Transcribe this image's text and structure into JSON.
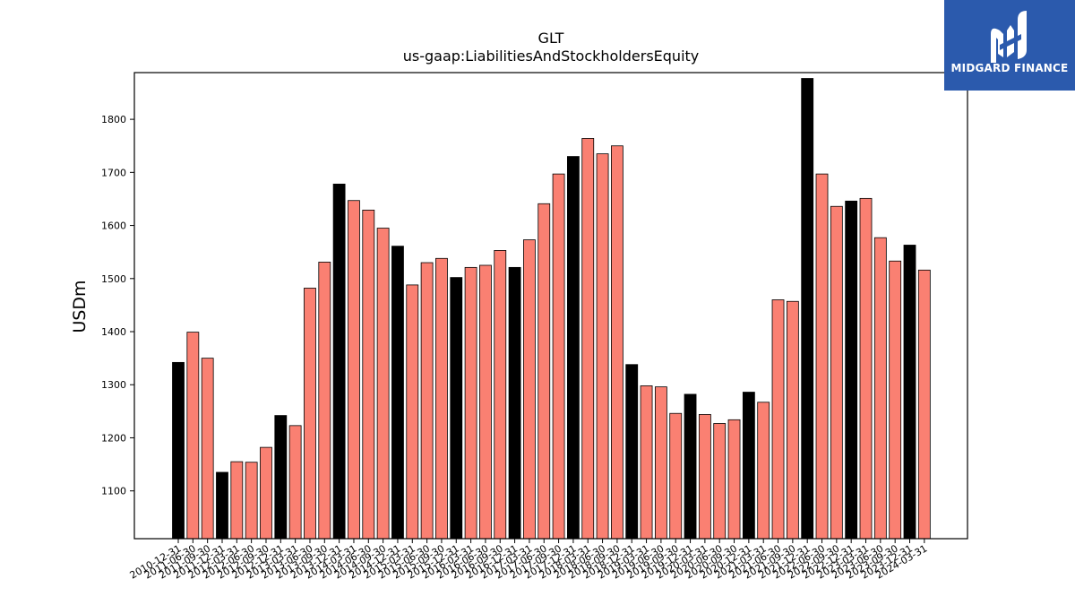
{
  "logo": {
    "text": "MIDGARD FINANCE",
    "icon": "midgard-logo-icon",
    "bg_color": "#2b5aad"
  },
  "colors": {
    "annual": "#000000",
    "quarterly": "#fa8072"
  },
  "chart_data": {
    "type": "bar",
    "title": "GLT",
    "subtitle": "us-gaap:LiabilitiesAndStockholdersEquity",
    "xlabel": "",
    "ylabel": "USDm",
    "ylim": [
      1010,
      1888
    ],
    "yticks": [
      1100,
      1200,
      1300,
      1400,
      1500,
      1600,
      1700,
      1800
    ],
    "grid": false,
    "categories": [
      "2010-12-31",
      "2011-06-30",
      "2011-09-30",
      "2011-12-31",
      "2012-03-31",
      "2012-06-30",
      "2012-09-30",
      "2012-12-31",
      "2013-03-31",
      "2013-06-30",
      "2013-09-30",
      "2013-12-31",
      "2014-03-31",
      "2014-06-30",
      "2014-09-30",
      "2014-12-31",
      "2015-03-31",
      "2015-06-30",
      "2015-09-30",
      "2015-12-31",
      "2016-03-31",
      "2016-06-30",
      "2016-09-30",
      "2016-12-31",
      "2017-03-31",
      "2017-06-30",
      "2017-09-30",
      "2017-12-31",
      "2018-03-31",
      "2018-06-30",
      "2018-09-30",
      "2018-12-31",
      "2019-03-31",
      "2019-06-30",
      "2019-09-30",
      "2019-12-31",
      "2020-03-31",
      "2020-06-30",
      "2020-09-30",
      "2020-12-31",
      "2021-03-31",
      "2021-06-30",
      "2021-09-30",
      "2021-12-31",
      "2022-06-30",
      "2022-09-30",
      "2022-12-31",
      "2023-03-31",
      "2023-06-30",
      "2023-09-30",
      "2023-12-31",
      "2024-03-31"
    ],
    "values": [
      1342,
      1399,
      1350,
      1135,
      1155,
      1154,
      1182,
      1242,
      1223,
      1482,
      1531,
      1678,
      1647,
      1629,
      1595,
      1561,
      1488,
      1530,
      1538,
      1502,
      1521,
      1525,
      1553,
      1521,
      1573,
      1641,
      1697,
      1730,
      1764,
      1735,
      1750,
      1338,
      1298,
      1296,
      1246,
      1282,
      1244,
      1227,
      1234,
      1286,
      1267,
      1460,
      1457,
      1877,
      1697,
      1636,
      1646,
      1651,
      1577,
      1533,
      1563,
      1516
    ],
    "annual_flags": [
      true,
      false,
      false,
      true,
      false,
      false,
      false,
      true,
      false,
      false,
      false,
      true,
      false,
      false,
      false,
      true,
      false,
      false,
      false,
      true,
      false,
      false,
      false,
      true,
      false,
      false,
      false,
      true,
      false,
      false,
      false,
      true,
      false,
      false,
      false,
      true,
      false,
      false,
      false,
      true,
      false,
      false,
      false,
      true,
      false,
      false,
      true,
      false,
      false,
      false,
      true,
      false
    ]
  }
}
